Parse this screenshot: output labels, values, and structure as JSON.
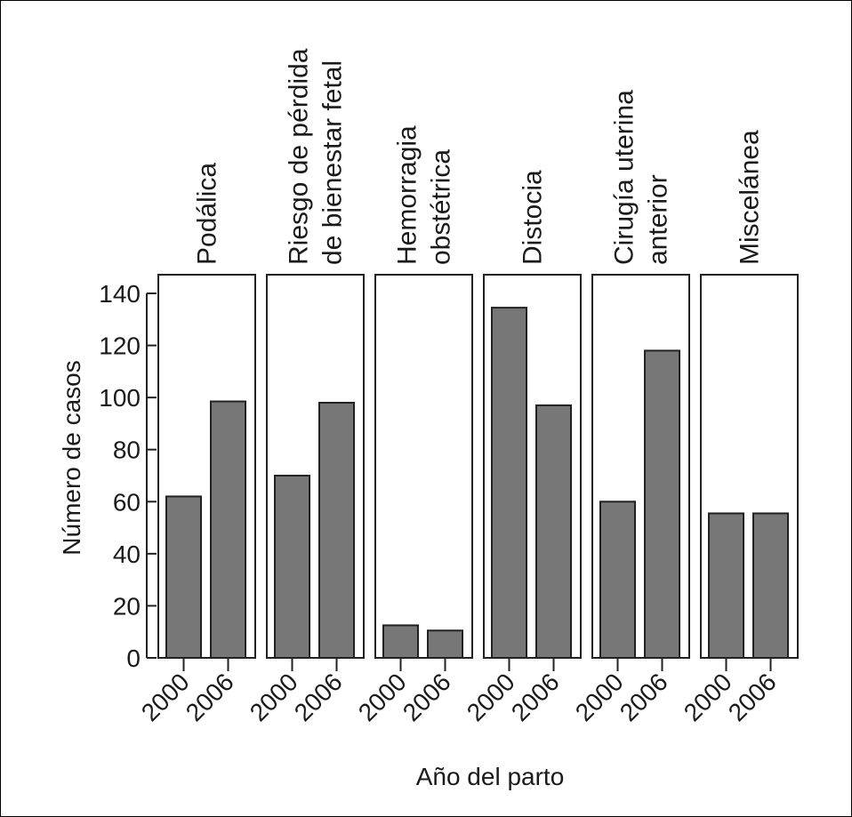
{
  "chart_data": {
    "type": "bar",
    "xlabel": "Año del parto",
    "ylabel": "Número de casos",
    "ylim": [
      0,
      140
    ],
    "yticks": [
      0,
      20,
      40,
      60,
      80,
      100,
      120,
      140
    ],
    "categories": [
      "2000",
      "2006"
    ],
    "bar_color": "#777777",
    "panels": [
      {
        "title_lines": [
          "Podálica"
        ],
        "values": [
          62,
          98.5
        ]
      },
      {
        "title_lines": [
          "Riesgo de pérdida",
          "de bienestar fetal"
        ],
        "values": [
          70,
          98
        ]
      },
      {
        "title_lines": [
          "Hemorragia",
          "obstétrica"
        ],
        "values": [
          12.5,
          10.5
        ]
      },
      {
        "title_lines": [
          "Distocia"
        ],
        "values": [
          134.5,
          97
        ]
      },
      {
        "title_lines": [
          "Cirugía uterina",
          "anterior"
        ],
        "values": [
          60,
          118
        ]
      },
      {
        "title_lines": [
          "Miscelánea"
        ],
        "values": [
          55.5,
          55.5
        ]
      }
    ]
  }
}
